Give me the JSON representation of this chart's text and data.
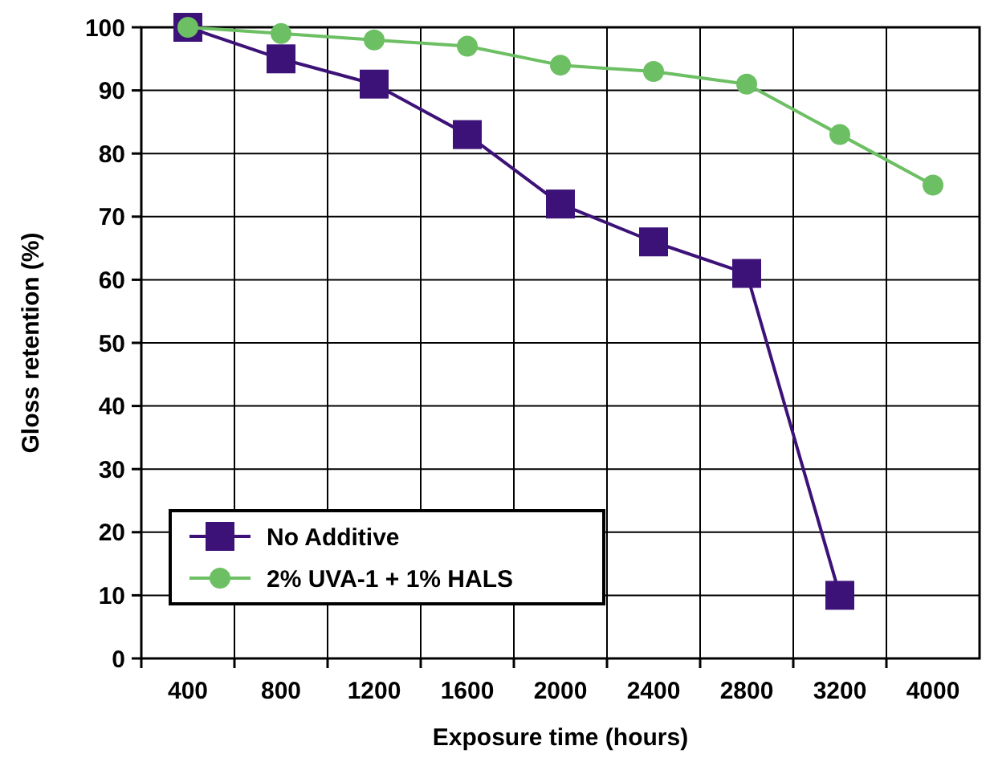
{
  "chart_data": {
    "type": "line",
    "xlabel": "Exposure time (hours)",
    "ylabel": "Gloss retention (%)",
    "categories": [
      "400",
      "800",
      "1200",
      "1600",
      "2000",
      "2400",
      "2800",
      "3200",
      "4000"
    ],
    "series": [
      {
        "name": "No Additive",
        "color": "#3d1278",
        "marker": "square",
        "values": [
          100,
          95,
          91,
          83,
          72,
          66,
          61,
          10,
          null
        ]
      },
      {
        "name": "2% UVA-1 + 1% HALS",
        "color": "#6cbf63",
        "marker": "circle",
        "values": [
          100,
          99,
          98,
          97,
          94,
          93,
          91,
          83,
          75
        ]
      }
    ],
    "ylim": [
      0,
      100
    ],
    "yticks": [
      0,
      10,
      20,
      30,
      40,
      50,
      60,
      70,
      80,
      90,
      100
    ],
    "grid": true,
    "legend": "bottom left"
  }
}
